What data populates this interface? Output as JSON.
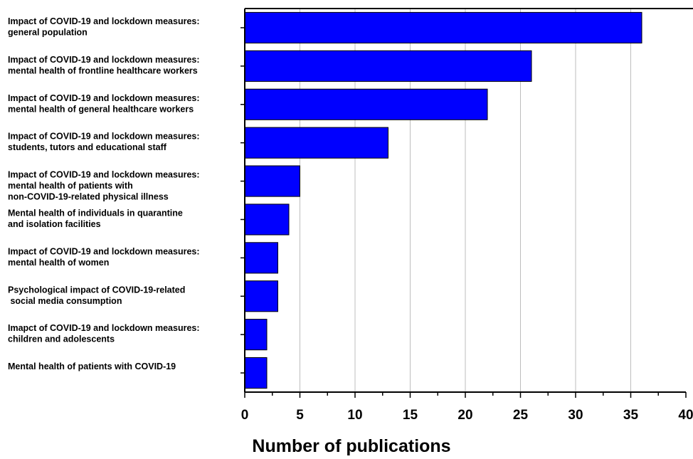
{
  "chart_data": {
    "type": "bar",
    "orientation": "horizontal",
    "title": "",
    "xlabel": "Number of publications",
    "ylabel": "",
    "xlim": [
      0,
      40
    ],
    "x_ticks": [
      "0",
      "5",
      "10",
      "15",
      "20",
      "25",
      "30",
      "35",
      "40"
    ],
    "grid": "vertical",
    "legend": "none",
    "bar_color": "#0000ff",
    "categories": [
      [
        "Impact of COVID-19 and lockdown measures:",
        "general population"
      ],
      [
        "Impact of COVID-19 and lockdown measures:",
        "mental health of frontline healthcare workers"
      ],
      [
        "Impact of COVID-19 and lockdown measures:",
        "mental health of general healthcare workers"
      ],
      [
        "Impact of COVID-19 and lockdown measures:",
        "students, tutors and educational staff"
      ],
      [
        "Impact of COVID-19 and lockdown measures:",
        "mental health of patients with",
        "non-COVID-19-related physical illness"
      ],
      [
        "Mental health of individuals in quarantine",
        "and isolation facilities"
      ],
      [
        "Impact of COVID-19 and lockdown measures:",
        "mental health of women"
      ],
      [
        "Psychological impact of COVID-19-related",
        " social media consumption"
      ],
      [
        "Imapct of COVID-19 and  lockdown measures:",
        "children and adolescents"
      ],
      [
        "Mental health of patients with COVID-19"
      ]
    ],
    "values": [
      36,
      26,
      22,
      13,
      5,
      4,
      3,
      3,
      2,
      2
    ]
  }
}
